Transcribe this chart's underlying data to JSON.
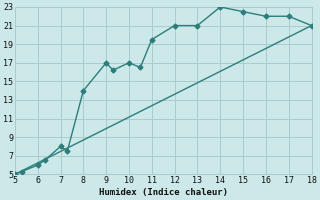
{
  "xlabel": "Humidex (Indice chaleur)",
  "bg_color": "#cce8e8",
  "grid_color": "#aacccc",
  "line_color": "#2d7d7d",
  "curve1_x": [
    5,
    5.3,
    6,
    6.3,
    7,
    7.3,
    8,
    9,
    9.3,
    10,
    10.5,
    11,
    12,
    13,
    14,
    15,
    16,
    17,
    18
  ],
  "curve1_y": [
    5,
    5.3,
    6,
    6.5,
    8,
    7.5,
    14,
    17,
    16.2,
    17,
    16.5,
    19.5,
    21,
    21,
    23,
    22.5,
    22,
    22,
    21
  ],
  "curve2_x": [
    5,
    18
  ],
  "curve2_y": [
    5,
    21
  ],
  "xlim": [
    5,
    18
  ],
  "ylim": [
    5,
    23
  ],
  "xticks": [
    5,
    6,
    7,
    8,
    9,
    10,
    11,
    12,
    13,
    14,
    15,
    16,
    17,
    18
  ],
  "yticks": [
    5,
    7,
    9,
    11,
    13,
    15,
    17,
    19,
    21,
    23
  ],
  "markersize": 2.5,
  "linewidth": 1.0
}
